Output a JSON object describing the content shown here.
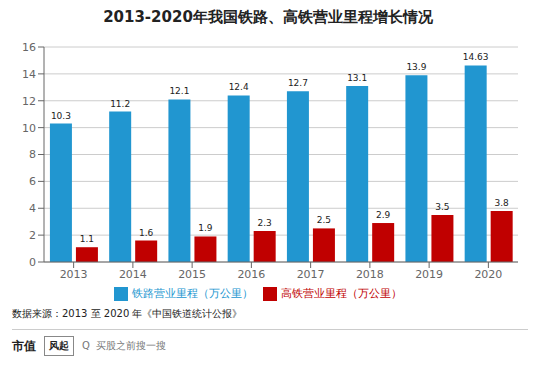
{
  "chart_data": {
    "type": "bar",
    "title": "2013-2020年我国铁路、高铁营业里程增长情况",
    "categories": [
      "2013",
      "2014",
      "2015",
      "2016",
      "2017",
      "2018",
      "2019",
      "2020"
    ],
    "series": [
      {
        "name": "铁路营业里程（万公里）",
        "color": "#2196d0",
        "values": [
          10.3,
          11.2,
          12.1,
          12.4,
          12.7,
          13.1,
          13.9,
          14.63
        ]
      },
      {
        "name": "高铁营业里程（万公里）",
        "color": "#c00000",
        "values": [
          1.1,
          1.6,
          1.9,
          2.3,
          2.5,
          2.9,
          3.5,
          3.8
        ]
      }
    ],
    "ylim": [
      0,
      16
    ],
    "yticks": [
      0,
      2,
      4,
      6,
      8,
      10,
      12,
      14,
      16
    ],
    "grid": true,
    "legend": "bottom",
    "data_labels": true,
    "annotations": [
      "数据来源：2013 至 2020 年《中国铁道统计公报》",
      "市值",
      "风起",
      "Q  买股之前搜一搜"
    ]
  }
}
